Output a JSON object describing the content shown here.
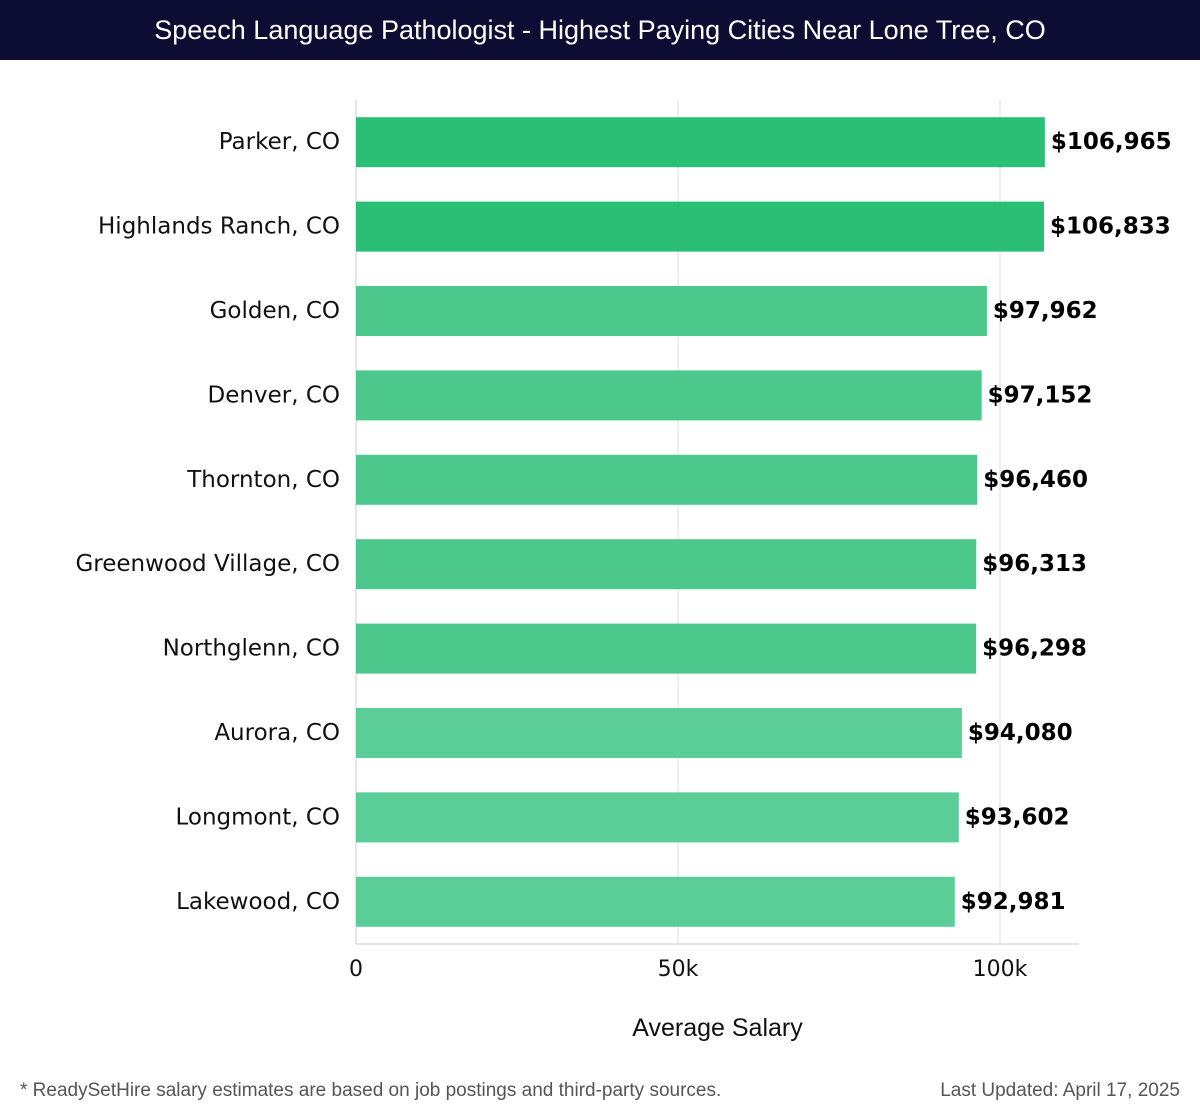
{
  "header": {
    "title": "Speech Language Pathologist - Highest Paying Cities Near Lone Tree, CO"
  },
  "chart_data": {
    "type": "bar",
    "orientation": "horizontal",
    "title": "Speech Language Pathologist - Highest Paying Cities Near Lone Tree, CO",
    "xlabel": "Average Salary",
    "ylabel": "",
    "categories": [
      "Parker, CO",
      "Highlands Ranch, CO",
      "Golden, CO",
      "Denver, CO",
      "Thornton, CO",
      "Greenwood Village, CO",
      "Northglenn, CO",
      "Aurora, CO",
      "Longmont, CO",
      "Lakewood, CO"
    ],
    "values": [
      106965,
      106833,
      97962,
      97152,
      96460,
      96313,
      96298,
      94080,
      93602,
      92981
    ],
    "value_labels": [
      "$106,965",
      "$106,833",
      "$97,962",
      "$97,152",
      "$96,460",
      "$96,313",
      "$96,298",
      "$94,080",
      "$93,602",
      "$92,981"
    ],
    "xlim": [
      0,
      112000
    ],
    "xticks": [
      0,
      50000,
      100000
    ],
    "xtick_labels": [
      "0",
      "50k",
      "100k"
    ],
    "grid": true,
    "colors": {
      "top_bar": "#2bbf76",
      "bar": "#4cc88c",
      "bar_light": "#5bcd97",
      "grid": "#dddddd",
      "axis": "#cccccc"
    }
  },
  "footer": {
    "note": "* ReadySetHire salary estimates are based on job postings and third-party sources.",
    "updated": "Last Updated: April 17, 2025"
  }
}
